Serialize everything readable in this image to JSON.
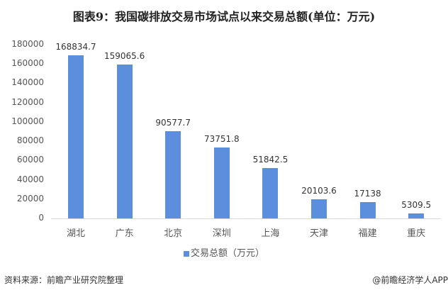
{
  "chart_data": {
    "type": "bar",
    "title": "图表9：我国碳排放交易市场试点以来交易总额(单位：万元)",
    "categories": [
      "湖北",
      "广东",
      "北京",
      "深圳",
      "上海",
      "天津",
      "福建",
      "重庆"
    ],
    "series": [
      {
        "name": "交易总额（万元）",
        "values": [
          168834.7,
          159065.6,
          90577.7,
          73751.8,
          51842.5,
          20103.6,
          17138,
          5309.5
        ]
      }
    ],
    "value_labels": [
      "168834.7",
      "159065.6",
      "90577.7",
      "73751.8",
      "51842.5",
      "20103.6",
      "17138",
      "5309.5"
    ],
    "xlabel": "",
    "ylabel": "",
    "ylim": [
      0,
      180000
    ],
    "yticks": [
      "0",
      "20000",
      "40000",
      "60000",
      "80000",
      "100000",
      "120000",
      "140000",
      "160000",
      "180000"
    ],
    "grid": false,
    "legend_position": "bottom",
    "bar_color": "#5b8fde"
  },
  "footer": {
    "source": "资料来源：前瞻产业研究院整理",
    "credit": "@前瞻经济学人APP"
  }
}
